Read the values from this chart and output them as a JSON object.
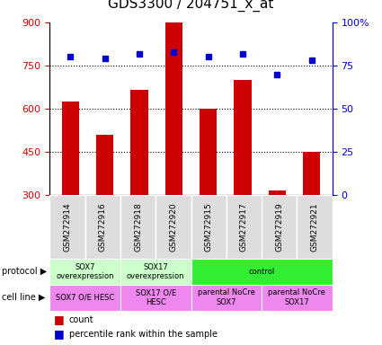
{
  "title": "GDS3300 / 204751_x_at",
  "samples": [
    "GSM272914",
    "GSM272916",
    "GSM272918",
    "GSM272920",
    "GSM272915",
    "GSM272917",
    "GSM272919",
    "GSM272921"
  ],
  "counts": [
    625,
    510,
    665,
    900,
    600,
    700,
    315,
    450
  ],
  "percentiles": [
    80,
    79,
    82,
    83,
    80,
    82,
    70,
    78
  ],
  "ylim_left": [
    300,
    900
  ],
  "ylim_right": [
    0,
    100
  ],
  "yticks_left": [
    300,
    450,
    600,
    750,
    900
  ],
  "yticks_right": [
    0,
    25,
    50,
    75,
    100
  ],
  "hlines": [
    450,
    600,
    750
  ],
  "bar_color": "#cc0000",
  "dot_color": "#0000cc",
  "left_tick_color": "#cc0000",
  "right_tick_color": "#0000cc",
  "tick_label_size": 8,
  "title_fontsize": 11,
  "sample_bg_color": "#dddddd",
  "protocol_groups": [
    {
      "label": "SOX7\noverexpression",
      "start": 0,
      "end": 2,
      "color": "#ccffcc"
    },
    {
      "label": "SOX17\noverexpression",
      "start": 2,
      "end": 4,
      "color": "#ccffcc"
    },
    {
      "label": "control",
      "start": 4,
      "end": 8,
      "color": "#33ee33"
    }
  ],
  "cell_line_groups": [
    {
      "label": "SOX7 O/E HESC",
      "start": 0,
      "end": 2,
      "color": "#ee88ee"
    },
    {
      "label": "SOX17 O/E\nHESC",
      "start": 2,
      "end": 4,
      "color": "#ee88ee"
    },
    {
      "label": "parental NoCre\nSOX7",
      "start": 4,
      "end": 6,
      "color": "#ee88ee"
    },
    {
      "label": "parental NoCre\nSOX17",
      "start": 6,
      "end": 8,
      "color": "#ee88ee"
    }
  ]
}
